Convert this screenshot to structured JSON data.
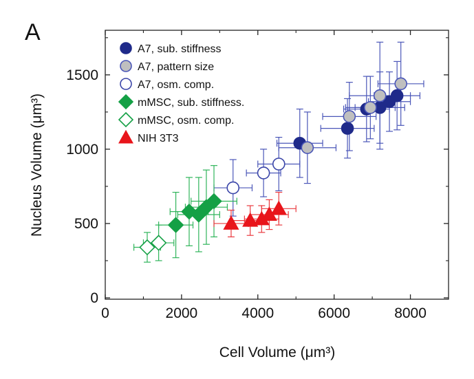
{
  "panel_label": "A",
  "chart_data": {
    "type": "scatter",
    "xlabel": "Cell Volume (μm³)",
    "ylabel": "Nucleus Volume (μm³)",
    "xlim": [
      0,
      9000
    ],
    "ylim": [
      0,
      1800
    ],
    "x_ticks": [
      0,
      2000,
      4000,
      6000,
      8000
    ],
    "y_ticks": [
      0,
      500,
      1000,
      1500
    ],
    "x_tick_labels": [
      "0",
      "2000",
      "4000",
      "6000",
      "8000"
    ],
    "y_tick_labels": [
      "0",
      "500",
      "1000",
      "1500"
    ],
    "grid": false,
    "legend_position": "top-left",
    "series": [
      {
        "name": "A7, sub. stiffness",
        "marker": "circle",
        "fill": "#1f2a8a",
        "stroke": "#1f2a8a",
        "bar_color": "#4a56b8",
        "points": [
          {
            "x": 5100,
            "y": 1040,
            "xerr": 600,
            "yerr": 230
          },
          {
            "x": 6350,
            "y": 1140,
            "xerr": 700,
            "yerr": 200
          },
          {
            "x": 6850,
            "y": 1270,
            "xerr": 600,
            "yerr": 220
          },
          {
            "x": 7200,
            "y": 1280,
            "xerr": 650,
            "yerr": 240
          },
          {
            "x": 7450,
            "y": 1320,
            "xerr": 550,
            "yerr": 200
          },
          {
            "x": 7650,
            "y": 1360,
            "xerr": 600,
            "yerr": 230
          }
        ]
      },
      {
        "name": "A7, pattern size",
        "marker": "circle",
        "fill": "#bfbfbf",
        "stroke": "#4a56b8",
        "bar_color": "#4a56b8",
        "points": [
          {
            "x": 5300,
            "y": 1010,
            "xerr": 750,
            "yerr": 240
          },
          {
            "x": 6400,
            "y": 1220,
            "xerr": 700,
            "yerr": 230
          },
          {
            "x": 6950,
            "y": 1280,
            "xerr": 650,
            "yerr": 210
          },
          {
            "x": 7200,
            "y": 1360,
            "xerr": 800,
            "yerr": 360
          },
          {
            "x": 7750,
            "y": 1440,
            "xerr": 600,
            "yerr": 280
          }
        ]
      },
      {
        "name": "A7, osm. comp.",
        "marker": "circle",
        "fill": "#ffffff",
        "stroke": "#3a45a8",
        "bar_color": "#4a56b8",
        "points": [
          {
            "x": 3350,
            "y": 740,
            "xerr": 500,
            "yerr": 190
          },
          {
            "x": 4150,
            "y": 840,
            "xerr": 450,
            "yerr": 160
          },
          {
            "x": 4550,
            "y": 900,
            "xerr": 550,
            "yerr": 180
          }
        ]
      },
      {
        "name": "mMSC, sub. stiffness.",
        "marker": "diamond",
        "fill": "#14a045",
        "stroke": "#14a045",
        "bar_color": "#2fb45a",
        "points": [
          {
            "x": 1850,
            "y": 490,
            "xerr": 450,
            "yerr": 220
          },
          {
            "x": 2200,
            "y": 580,
            "xerr": 500,
            "yerr": 230
          },
          {
            "x": 2450,
            "y": 560,
            "xerr": 550,
            "yerr": 250
          },
          {
            "x": 2650,
            "y": 610,
            "xerr": 550,
            "yerr": 250
          },
          {
            "x": 2850,
            "y": 650,
            "xerr": 600,
            "yerr": 240
          }
        ]
      },
      {
        "name": "mMSC, osm. comp.",
        "marker": "diamond",
        "fill": "#ffffff",
        "stroke": "#14a045",
        "bar_color": "#2fb45a",
        "points": [
          {
            "x": 1100,
            "y": 340,
            "xerr": 350,
            "yerr": 100
          },
          {
            "x": 1400,
            "y": 370,
            "xerr": 400,
            "yerr": 120
          }
        ]
      },
      {
        "name": "NIH 3T3",
        "marker": "triangle",
        "fill": "#e8151b",
        "stroke": "#e8151b",
        "bar_color": "#ea3a3f",
        "points": [
          {
            "x": 3300,
            "y": 500,
            "xerr": 450,
            "yerr": 90
          },
          {
            "x": 3800,
            "y": 520,
            "xerr": 500,
            "yerr": 100
          },
          {
            "x": 4100,
            "y": 530,
            "xerr": 450,
            "yerr": 90
          },
          {
            "x": 4300,
            "y": 560,
            "xerr": 500,
            "yerr": 100
          },
          {
            "x": 4550,
            "y": 600,
            "xerr": 450,
            "yerr": 110
          }
        ]
      }
    ]
  }
}
